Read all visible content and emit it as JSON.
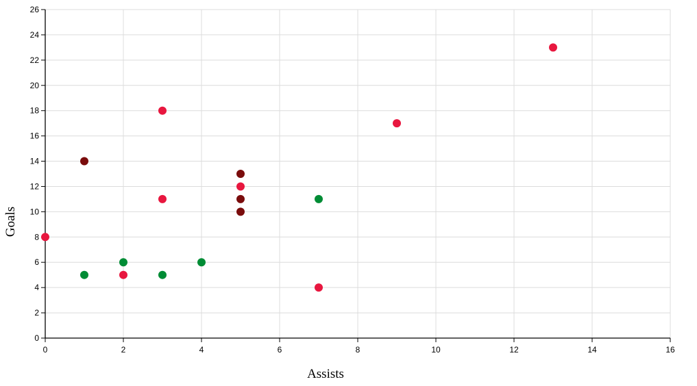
{
  "chart_data": {
    "type": "scatter",
    "title": "",
    "xlabel": "Assists",
    "ylabel": "Goals",
    "xlim": [
      0,
      16
    ],
    "ylim": [
      0,
      26
    ],
    "x_ticks": [
      0,
      2,
      4,
      6,
      8,
      10,
      12,
      14,
      16
    ],
    "y_ticks": [
      0,
      2,
      4,
      6,
      8,
      10,
      12,
      14,
      16,
      18,
      20,
      22,
      24,
      26
    ],
    "grid": true,
    "legend": "none",
    "series": [
      {
        "color": "#e8173f",
        "points": [
          [
            0,
            8
          ],
          [
            2,
            5
          ],
          [
            3,
            11
          ],
          [
            3,
            18
          ],
          [
            5,
            12
          ],
          [
            7,
            4
          ],
          [
            9,
            17
          ],
          [
            13,
            23
          ]
        ]
      },
      {
        "color": "#7a0c0c",
        "points": [
          [
            1,
            14
          ],
          [
            5,
            10
          ],
          [
            5,
            11
          ],
          [
            5,
            13
          ]
        ]
      },
      {
        "color": "#008c35",
        "points": [
          [
            1,
            5
          ],
          [
            2,
            6
          ],
          [
            3,
            5
          ],
          [
            4,
            6
          ],
          [
            7,
            11
          ]
        ]
      }
    ]
  }
}
